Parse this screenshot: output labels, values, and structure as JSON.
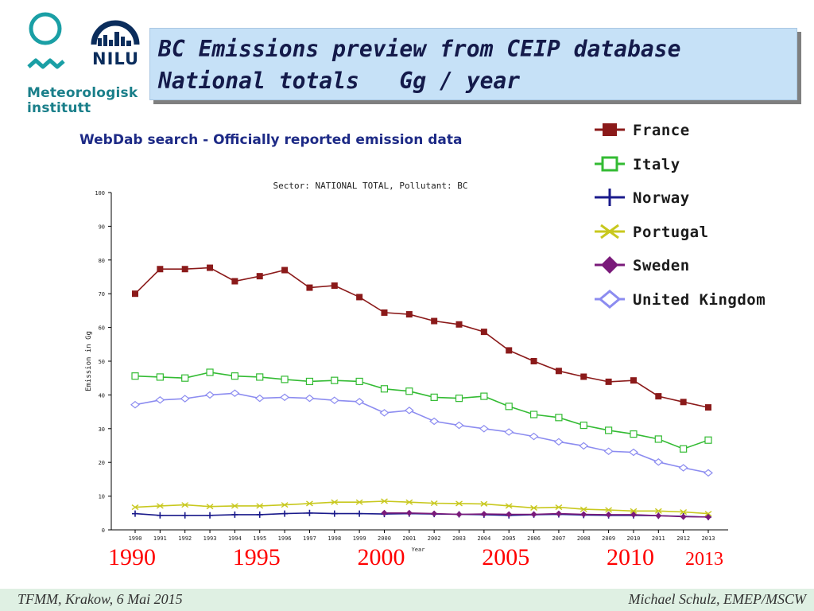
{
  "logos": {
    "met_line1": "Meteorologisk",
    "met_line2": "institutt",
    "nilu": "NILU"
  },
  "slide_title": {
    "line1": "BC Emissions preview from CEIP database",
    "line2": "National totals   Gg / year"
  },
  "webdab_heading": "WebDab search - Officially reported emission data",
  "chart_data": {
    "type": "line",
    "title": "Sector: NATIONAL TOTAL, Pollutant: BC",
    "xlabel": "Year",
    "ylabel": "Emission in Gg",
    "ylim": [
      0,
      100
    ],
    "yticks": [
      0,
      10,
      20,
      30,
      40,
      50,
      60,
      70,
      80,
      90,
      100
    ],
    "x": [
      "1990",
      "1991",
      "1992",
      "1993",
      "1994",
      "1995",
      "1996",
      "1997",
      "1998",
      "1999",
      "2000",
      "2001",
      "2002",
      "2003",
      "2004",
      "2005",
      "2006",
      "2007",
      "2008",
      "2009",
      "2010",
      "2011",
      "2012",
      "2013"
    ],
    "legend_position": "right",
    "series": [
      {
        "name": "France",
        "color": "#8b1a1a",
        "marker": "filled-square",
        "values": [
          70.0,
          77.3,
          77.3,
          77.7,
          73.7,
          75.2,
          77.0,
          71.8,
          72.4,
          69.0,
          64.4,
          63.9,
          61.9,
          60.9,
          58.7,
          53.2,
          50.0,
          47.1,
          45.4,
          43.9,
          44.3,
          39.6,
          37.9,
          36.3
        ]
      },
      {
        "name": "Italy",
        "color": "#33bb33",
        "marker": "open-square",
        "values": [
          45.6,
          45.3,
          45.0,
          46.7,
          45.6,
          45.3,
          44.6,
          44.0,
          44.3,
          44.0,
          41.8,
          41.1,
          39.3,
          39.0,
          39.6,
          36.6,
          34.2,
          33.3,
          31.0,
          29.5,
          28.4,
          26.9,
          24.0,
          26.6
        ]
      },
      {
        "name": "Norway",
        "color": "#1a1a8b",
        "marker": "plus",
        "values": [
          4.8,
          4.3,
          4.3,
          4.3,
          4.5,
          4.5,
          4.8,
          5.0,
          4.8,
          4.8,
          4.7,
          4.8,
          4.7,
          4.6,
          4.5,
          4.3,
          4.5,
          4.6,
          4.4,
          4.3,
          4.3,
          4.2,
          4.0,
          3.8
        ]
      },
      {
        "name": "Portugal",
        "color": "#c8c81e",
        "marker": "x",
        "values": [
          6.7,
          7.1,
          7.4,
          6.9,
          7.1,
          7.1,
          7.4,
          7.8,
          8.2,
          8.2,
          8.5,
          8.2,
          7.9,
          7.8,
          7.7,
          7.1,
          6.5,
          6.7,
          6.1,
          5.9,
          5.6,
          5.6,
          5.3,
          4.8
        ]
      },
      {
        "name": "Sweden",
        "color": "#7a1a7a",
        "marker": "filled-diamond",
        "values": [
          null,
          null,
          null,
          null,
          null,
          null,
          null,
          null,
          null,
          null,
          5.0,
          5.0,
          4.8,
          4.6,
          4.7,
          4.6,
          4.6,
          4.8,
          4.6,
          4.5,
          4.5,
          4.2,
          3.9,
          3.8
        ]
      },
      {
        "name": "United Kingdom",
        "color": "#8c8cf0",
        "marker": "open-diamond",
        "values": [
          37.1,
          38.5,
          38.9,
          40.0,
          40.5,
          39.0,
          39.3,
          39.0,
          38.4,
          38.0,
          34.7,
          35.4,
          32.2,
          31.0,
          30.0,
          29.0,
          27.7,
          26.1,
          24.9,
          23.3,
          23.0,
          20.1,
          18.4,
          16.9
        ]
      }
    ]
  },
  "year_overlay": [
    "1990",
    "1995",
    "2000",
    "2005",
    "2010"
  ],
  "year_overlay_last": "2013",
  "footer": {
    "left": "TFMM, Krakow, 6 Mai 2015",
    "right": "Michael Schulz, EMEP/MSCW"
  }
}
